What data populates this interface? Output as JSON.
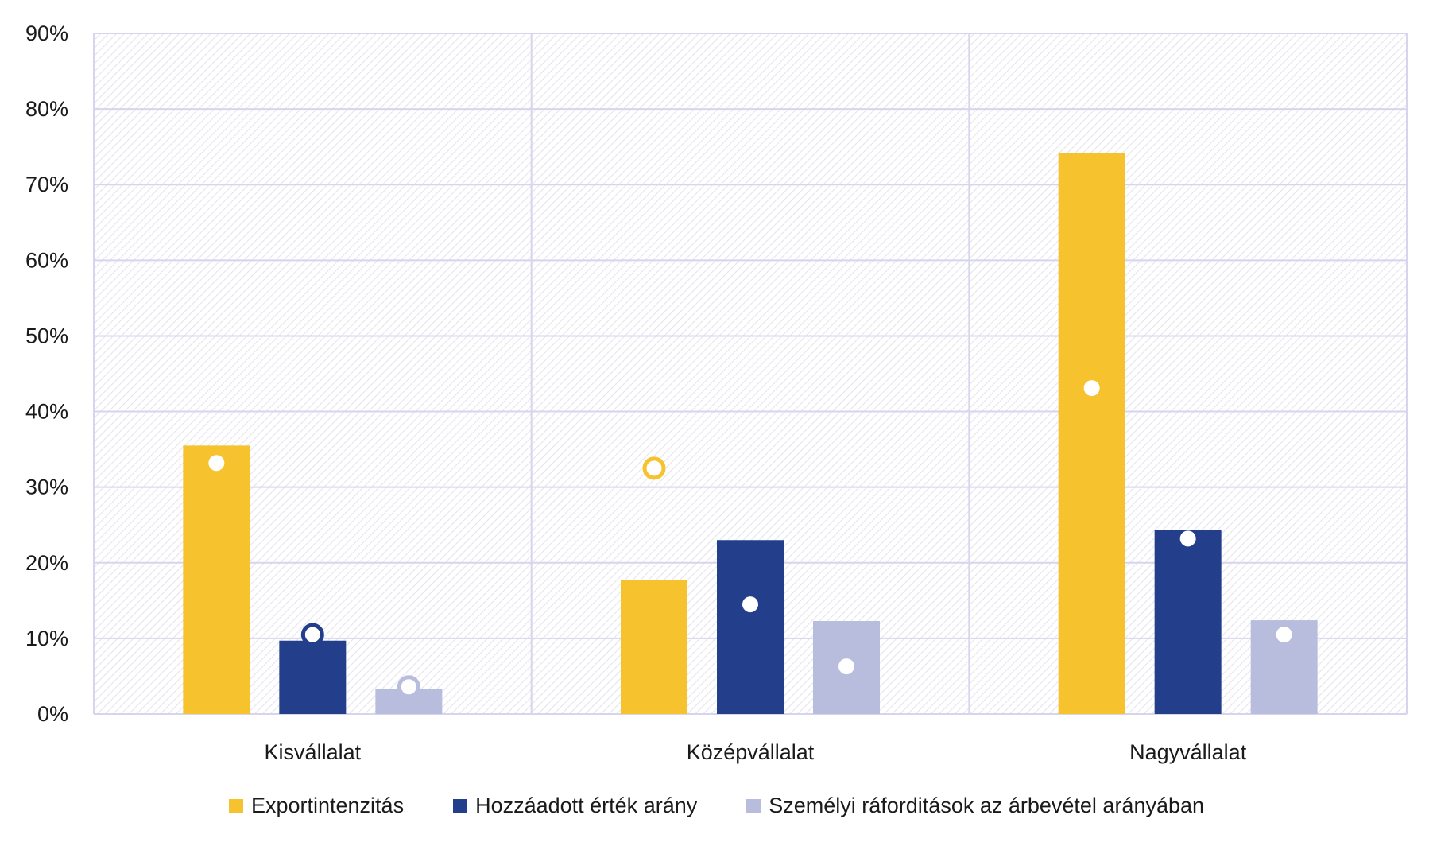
{
  "chart_data": {
    "type": "bar",
    "title": "",
    "xlabel": "",
    "ylabel": "",
    "ylim": [
      0,
      90
    ],
    "yticks": [
      0,
      10,
      20,
      30,
      40,
      50,
      60,
      70,
      80,
      90
    ],
    "ytick_labels": [
      "0%",
      "10%",
      "20%",
      "30%",
      "40%",
      "50%",
      "60%",
      "70%",
      "80%",
      "90%"
    ],
    "categories": [
      "Kisvállalat",
      "Középvállalat",
      "Nagyvállalat"
    ],
    "series": [
      {
        "name": "Exportintenzitás",
        "color": "#F6C32E",
        "values": [
          35.5,
          17.7,
          74.2
        ],
        "markers": [
          33.2,
          32.5,
          43.1
        ]
      },
      {
        "name": "Hozzáadott érték arány",
        "color": "#233F8C",
        "values": [
          9.7,
          23.0,
          24.3
        ],
        "markers": [
          10.5,
          14.5,
          23.2
        ]
      },
      {
        "name": "Személyi ráforditások az árbevétel arányában",
        "color": "#B9BDDD",
        "values": [
          3.3,
          12.3,
          12.4
        ],
        "markers": [
          3.6,
          6.3,
          10.5
        ]
      }
    ],
    "grid": true,
    "legend_position": "bottom"
  }
}
